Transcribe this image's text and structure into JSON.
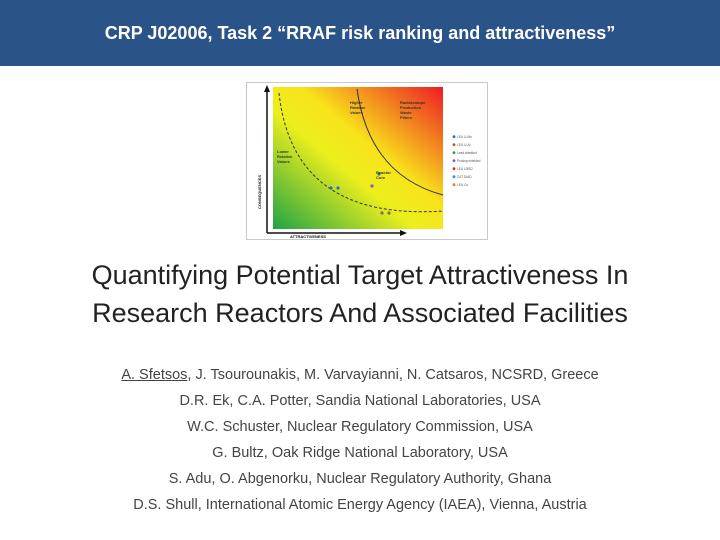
{
  "header": {
    "title": "CRP J02006, Task 2 “RRAF risk ranking and attractiveness”"
  },
  "figure": {
    "label_higher_1": "Higher",
    "label_higher_2": "Relative",
    "label_higher_3": "Values",
    "label_radio_1": "Radioisotope",
    "label_radio_2": "Production",
    "label_radio_3": "Waste",
    "label_radio_4": "Filters",
    "label_lower_1": "Lower",
    "label_lower_2": "Relative",
    "label_lower_3": "Values",
    "label_reactor_1": "Reactor",
    "label_reactor_2": "Core",
    "x_axis_label": "ATTRACTIVENESS",
    "y_axis_label": "CONSEQUENCES",
    "legend": [
      {
        "label": "LEU U-Mo",
        "color": "#2f6fb5"
      },
      {
        "label": "LEU U-Al",
        "color": "#8a6d3b"
      },
      {
        "label": "Lead shielded",
        "color": "#3f9a3f"
      },
      {
        "label": "Pooling shielded",
        "color": "#8a5aa8"
      },
      {
        "label": "LEU U3Si2",
        "color": "#c0392b"
      },
      {
        "label": "CAT DIAD",
        "color": "#3a8ac4"
      },
      {
        "label": "LEU Cs",
        "color": "#d9822b"
      }
    ]
  },
  "paper": {
    "title_line1": "Quantifying Potential Target Attractiveness In",
    "title_line2": "Research Reactors And Associated Facilities",
    "author_presenter": "A. Sfetsos",
    "author_line1_rest": ", J. Tsourounakis, M. Varvayianni, N. Catsaros, NCSRD, Greece",
    "author_line2": "D.R. Ek, C.A. Potter, Sandia National Laboratories, USA",
    "author_line3": "W.C. Schuster, Nuclear Regulatory Commission, USA",
    "author_line4": "G. Bultz, Oak Ridge National Laboratory, USA",
    "author_line5": "S. Adu, O. Abgenorku, Nuclear Regulatory Authority, Ghana",
    "author_line6": "D.S. Shull, International Atomic Energy Agency (IAEA), Vienna, Austria"
  }
}
